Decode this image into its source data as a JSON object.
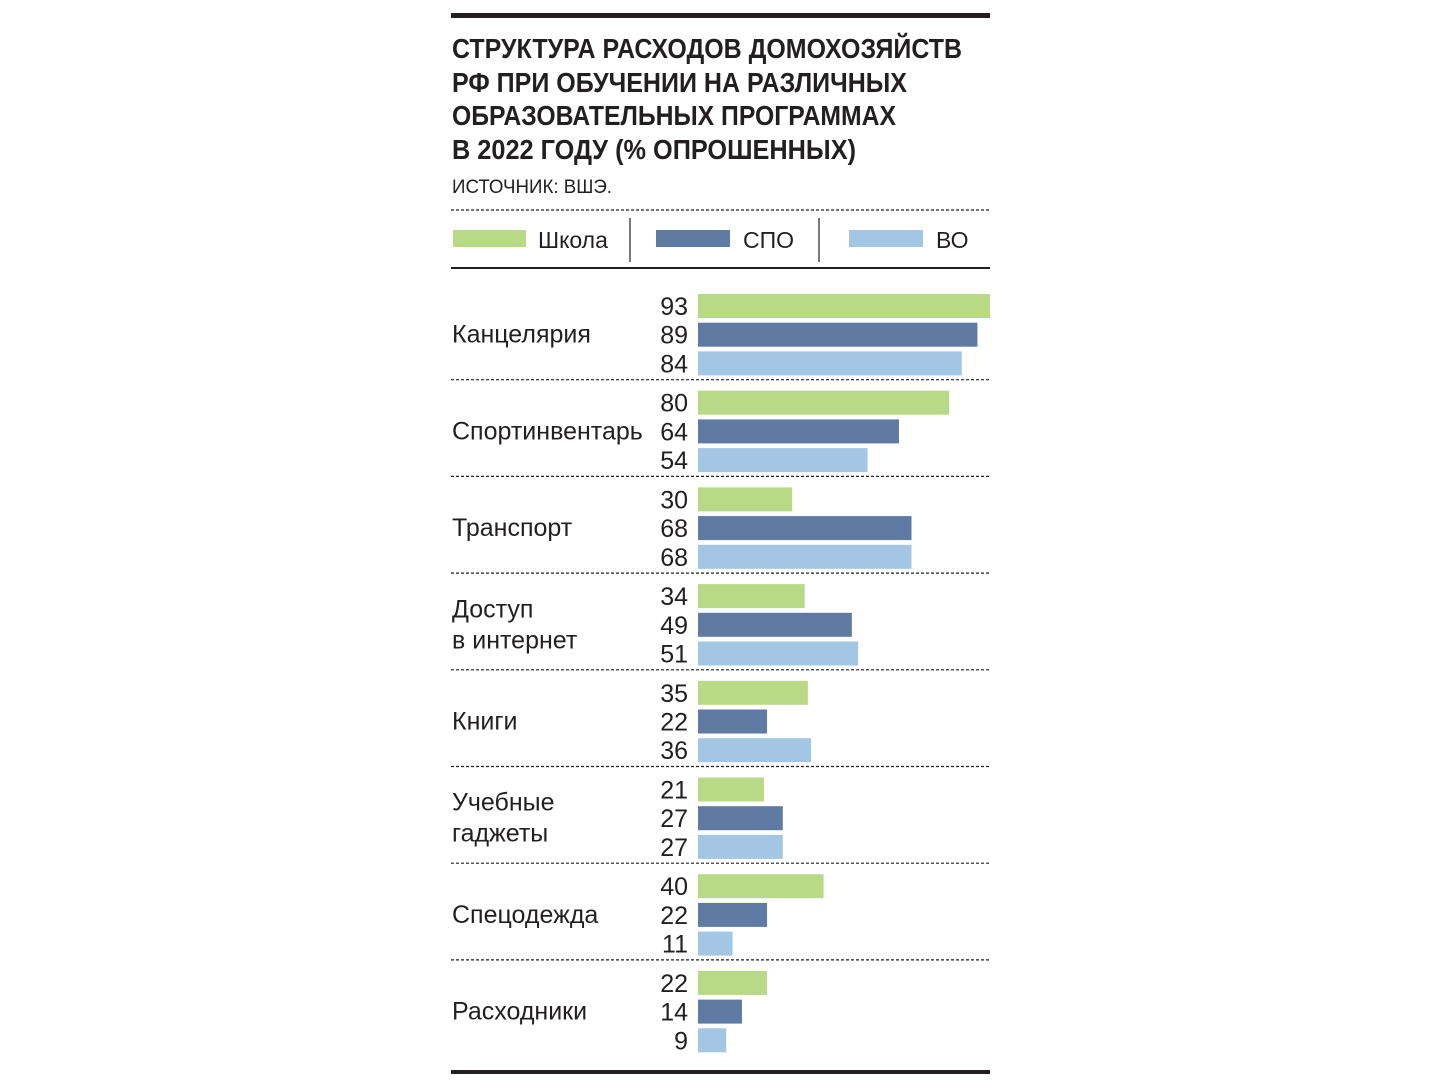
{
  "title_lines": [
    "СТРУКТУРА РАСХОДОВ ДОМОХОЗЯЙСТВ",
    "РФ ПРИ ОБУЧЕНИИ НА РАЗЛИЧНЫХ",
    "ОБРАЗОВАТЕЛЬНЫХ ПРОГРАММАХ",
    "В 2022 ГОДУ (% ОПРОШЕННЫХ)"
  ],
  "source": "ИСТОЧНИК: ВШЭ.",
  "colors": {
    "school": "#b8d985",
    "spo": "#5f7aa3",
    "vo": "#a2c6e3",
    "text": "#231f20",
    "rule": "#231f20"
  },
  "chart_data": {
    "type": "bar",
    "orientation": "horizontal",
    "title": "СТРУКТУРА РАСХОДОВ ДОМОХОЗЯЙСТВ РФ ПРИ ОБУЧЕНИИ НА РАЗЛИЧНЫХ ОБРАЗОВАТЕЛЬНЫХ ПРОГРАММАХ В 2022 ГОДУ (% ОПРОШЕННЫХ)",
    "legend_position": "top",
    "xlim": [
      0,
      93
    ],
    "categories": [
      [
        "Канцелярия"
      ],
      [
        "Спортинвентарь"
      ],
      [
        "Транспорт"
      ],
      [
        "Доступ",
        "в интернет"
      ],
      [
        "Книги"
      ],
      [
        "Учебные",
        "гаджеты"
      ],
      [
        "Спецодежда"
      ],
      [
        "Расходники"
      ]
    ],
    "series": [
      {
        "name": "Школа",
        "color": "#b8d985",
        "values": [
          93,
          80,
          30,
          34,
          35,
          21,
          40,
          22
        ]
      },
      {
        "name": "СПО",
        "color": "#5f7aa3",
        "values": [
          89,
          64,
          68,
          49,
          22,
          27,
          22,
          14
        ]
      },
      {
        "name": "ВО",
        "color": "#a2c6e3",
        "values": [
          84,
          54,
          68,
          51,
          36,
          27,
          11,
          9
        ]
      }
    ]
  }
}
